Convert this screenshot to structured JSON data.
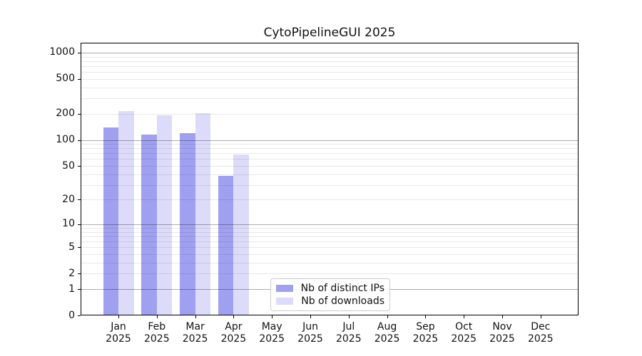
{
  "chart_data": {
    "type": "bar",
    "title": "CytoPipelineGUI 2025",
    "categories": [
      "Jan",
      "Feb",
      "Mar",
      "Apr",
      "May",
      "Jun",
      "Jul",
      "Aug",
      "Sep",
      "Oct",
      "Nov",
      "Dec"
    ],
    "year": "2025",
    "series": [
      {
        "name": "Nb of distinct IPs",
        "color": "#a0a0f0",
        "values": [
          139,
          116,
          120,
          38,
          0,
          0,
          0,
          0,
          0,
          0,
          0,
          0
        ]
      },
      {
        "name": "Nb of downloads",
        "color": "#dcdcfa",
        "values": [
          213,
          190,
          203,
          68,
          0,
          0,
          0,
          0,
          0,
          0,
          0,
          0
        ]
      }
    ],
    "y_ticks": [
      0,
      1,
      2,
      5,
      10,
      20,
      50,
      100,
      200,
      500,
      1000
    ],
    "y_scale": "log10(1+v)",
    "ylim": [
      0,
      1300
    ],
    "xlabel": "",
    "ylabel": "",
    "grid": "horizontal major+minor, drawn over bars",
    "legend_position": "inside lower-center-left",
    "colors": {
      "distinct_ips_bar": "#a0a0f0",
      "downloads_bar": "#dcdcfa",
      "spine": "#000000",
      "legend_border": "#cccccc"
    }
  }
}
